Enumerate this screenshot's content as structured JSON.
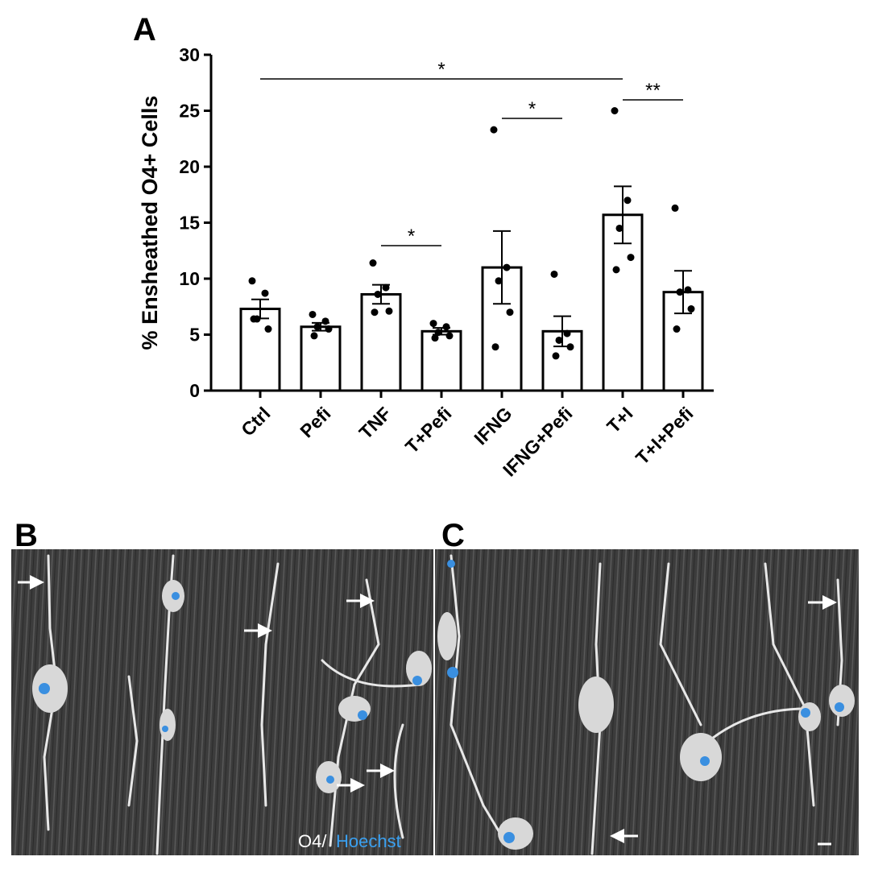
{
  "panel_labels": [
    "A",
    "B",
    "C"
  ],
  "image_caption": {
    "stain1": "O4/",
    "stain2": "Hoechst"
  },
  "chart_data": {
    "type": "bar",
    "ylabel": "% Ensheathed O4+ Cells",
    "categories": [
      "Ctrl",
      "Pefi",
      "TNF",
      "T+Pefi",
      "IFNG",
      "IFNG+Pefi",
      "T+I",
      "T+I+Pefi"
    ],
    "values": [
      7.3,
      5.7,
      8.6,
      5.3,
      11.0,
      5.3,
      15.7,
      8.8
    ],
    "errors": [
      0.85,
      0.35,
      0.85,
      0.3,
      3.25,
      1.35,
      2.55,
      1.9
    ],
    "points": [
      [
        9.8,
        8.7,
        6.4,
        5.5,
        6.4
      ],
      [
        6.8,
        6.2,
        5.7,
        5.5,
        4.9
      ],
      [
        11.4,
        9.2,
        8.6,
        7.1,
        7.0
      ],
      [
        6.0,
        5.7,
        5.2,
        4.9,
        4.7
      ],
      [
        23.3,
        11.0,
        9.8,
        7.0,
        3.9
      ],
      [
        10.4,
        5.1,
        4.5,
        3.9,
        3.1
      ],
      [
        25.0,
        17.0,
        14.5,
        11.9,
        10.8
      ],
      [
        16.3,
        9.0,
        8.8,
        7.3,
        5.5
      ]
    ],
    "color": "#ffffff",
    "edge_color": "#000000",
    "ylim": [
      0,
      30
    ],
    "yticks": [
      0,
      5,
      10,
      15,
      20,
      25,
      30
    ],
    "annotations": [
      {
        "text": "*",
        "from": "Ctrl",
        "to": "T+I"
      },
      {
        "text": "*",
        "from": "TNF",
        "to": "T+Pefi"
      },
      {
        "text": "*",
        "from": "IFNG",
        "to": "IFNG+Pefi"
      },
      {
        "text": "**",
        "from": "T+I",
        "to": "T+I+Pefi"
      }
    ]
  }
}
